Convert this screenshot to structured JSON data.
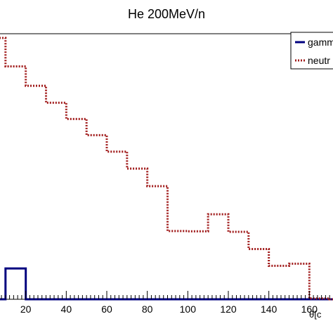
{
  "chart_data": {
    "type": "step-histogram",
    "title": "He 200MeV/n",
    "xlabel": "θ[c",
    "ylabel": "",
    "xlim": [
      0,
      180
    ],
    "ylim": [
      0,
      1.0
    ],
    "x_ticks": [
      20,
      40,
      60,
      80,
      100,
      120,
      140,
      160
    ],
    "bin_edges": [
      0,
      10,
      20,
      30,
      40,
      50,
      60,
      70,
      80,
      90,
      100,
      110,
      120,
      130,
      140,
      150,
      160,
      170,
      180
    ],
    "legend": {
      "position": "top-right"
    },
    "series": [
      {
        "name": "gamm",
        "color": "#00007f",
        "style": "solid",
        "values": [
          0,
          0.116,
          0,
          0,
          0,
          0,
          0,
          0,
          0,
          0,
          0,
          0,
          0,
          0,
          0,
          0,
          0,
          0
        ]
      },
      {
        "name": "neutr",
        "color": "#a01a1a",
        "style": "dotted",
        "values": [
          0.984,
          0.877,
          0.804,
          0.74,
          0.679,
          0.618,
          0.556,
          0.492,
          0.426,
          0.257,
          0.256,
          0.32,
          0.254,
          0.189,
          0.126,
          0.134,
          0.003,
          0
        ]
      }
    ]
  }
}
